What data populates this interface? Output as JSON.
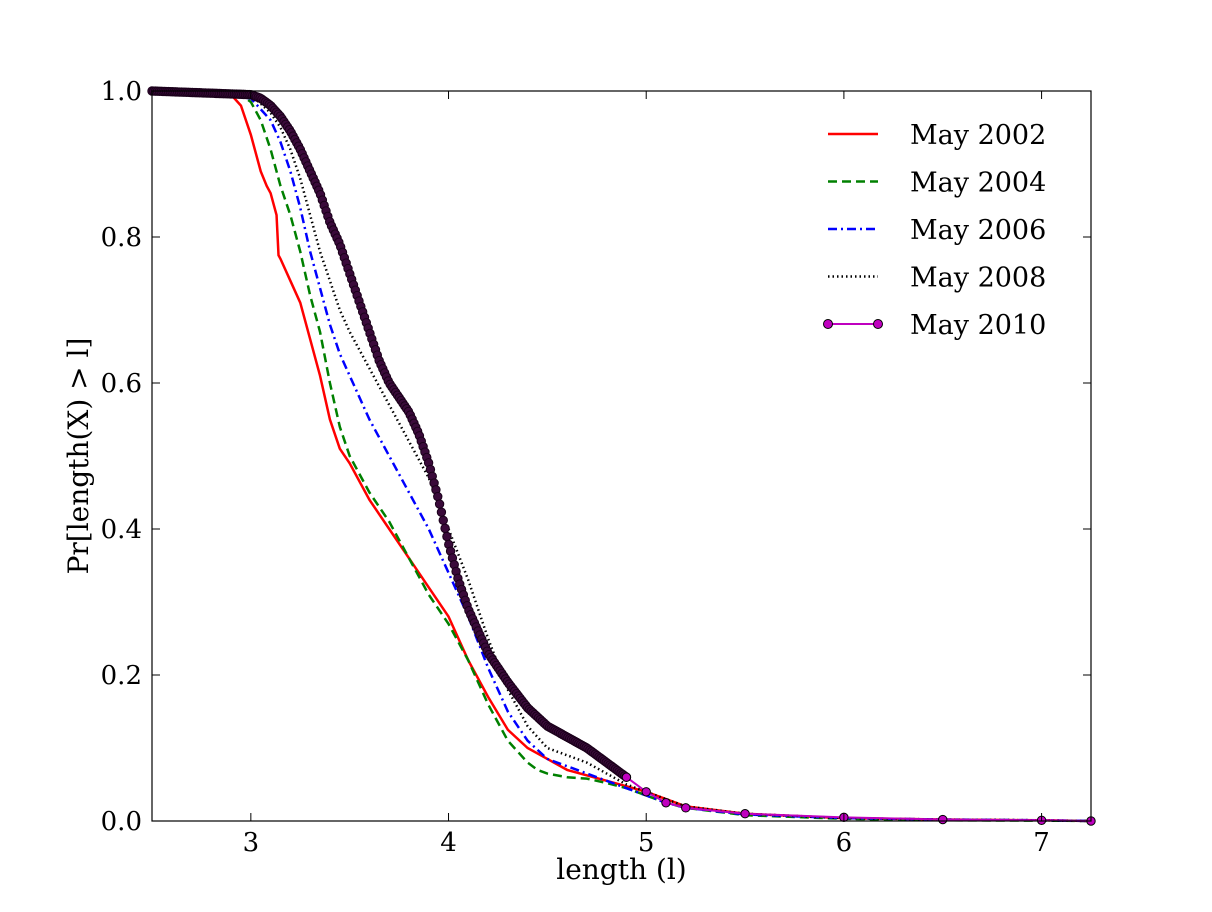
{
  "chart_data": {
    "type": "line",
    "title": "",
    "xlabel": "length (l)",
    "ylabel": "Pr[length(X) > l]",
    "xlim": [
      2.5,
      7.25
    ],
    "ylim": [
      0.0,
      1.0
    ],
    "xticks": [
      3,
      4,
      5,
      6,
      7
    ],
    "xtick_labels": [
      "3",
      "4",
      "5",
      "6",
      "7"
    ],
    "yticks": [
      0.0,
      0.2,
      0.4,
      0.6,
      0.8,
      1.0
    ],
    "ytick_labels": [
      "0.0",
      "0.2",
      "0.4",
      "0.6",
      "0.8",
      "1.0"
    ],
    "grid": false,
    "legend_position": "top-right",
    "series": [
      {
        "name": "May 2002",
        "color": "#ff0000",
        "style": "solid",
        "x": [
          2.5,
          2.9,
          2.95,
          3.0,
          3.02,
          3.05,
          3.08,
          3.1,
          3.13,
          3.14,
          3.15,
          3.2,
          3.25,
          3.3,
          3.35,
          3.4,
          3.45,
          3.5,
          3.6,
          3.7,
          3.8,
          3.9,
          4.0,
          4.1,
          4.2,
          4.3,
          4.4,
          4.5,
          4.6,
          4.8,
          5.0,
          5.1,
          5.2,
          5.5,
          6.0,
          6.5,
          7.0,
          7.25
        ],
        "y": [
          1.0,
          0.995,
          0.98,
          0.94,
          0.92,
          0.89,
          0.87,
          0.86,
          0.83,
          0.775,
          0.77,
          0.74,
          0.71,
          0.66,
          0.61,
          0.55,
          0.51,
          0.49,
          0.44,
          0.4,
          0.36,
          0.32,
          0.28,
          0.22,
          0.17,
          0.125,
          0.1,
          0.085,
          0.07,
          0.055,
          0.04,
          0.03,
          0.02,
          0.01,
          0.004,
          0.002,
          0.001,
          0.0
        ]
      },
      {
        "name": "May 2004",
        "color": "#008000",
        "style": "dashed",
        "x": [
          2.5,
          2.95,
          3.0,
          3.05,
          3.1,
          3.15,
          3.2,
          3.25,
          3.3,
          3.35,
          3.4,
          3.45,
          3.5,
          3.6,
          3.7,
          3.8,
          3.9,
          4.0,
          4.1,
          4.2,
          4.3,
          4.4,
          4.45,
          4.5,
          4.6,
          4.7,
          4.8,
          4.9,
          5.0,
          5.1,
          5.2,
          5.5,
          6.0,
          6.5,
          7.0,
          7.25
        ],
        "y": [
          1.0,
          0.995,
          0.985,
          0.96,
          0.92,
          0.87,
          0.83,
          0.78,
          0.72,
          0.67,
          0.6,
          0.54,
          0.5,
          0.45,
          0.41,
          0.36,
          0.31,
          0.27,
          0.22,
          0.16,
          0.11,
          0.08,
          0.07,
          0.065,
          0.06,
          0.058,
          0.052,
          0.045,
          0.035,
          0.025,
          0.018,
          0.008,
          0.003,
          0.001,
          0.0005,
          0.0
        ]
      },
      {
        "name": "May 2006",
        "color": "#0000ff",
        "style": "dashdot",
        "x": [
          2.5,
          3.0,
          3.05,
          3.1,
          3.15,
          3.2,
          3.25,
          3.3,
          3.35,
          3.4,
          3.45,
          3.5,
          3.6,
          3.7,
          3.8,
          3.9,
          4.0,
          4.1,
          4.2,
          4.3,
          4.4,
          4.5,
          4.6,
          4.7,
          4.8,
          4.9,
          5.0,
          5.1,
          5.2,
          5.5,
          6.0,
          6.5,
          7.0,
          7.25
        ],
        "y": [
          1.0,
          0.99,
          0.975,
          0.96,
          0.93,
          0.89,
          0.84,
          0.78,
          0.73,
          0.68,
          0.64,
          0.61,
          0.55,
          0.5,
          0.45,
          0.4,
          0.34,
          0.28,
          0.21,
          0.15,
          0.11,
          0.085,
          0.075,
          0.065,
          0.055,
          0.045,
          0.035,
          0.025,
          0.018,
          0.009,
          0.004,
          0.002,
          0.001,
          0.0
        ]
      },
      {
        "name": "May 2008",
        "color": "#000000",
        "style": "dotted",
        "x": [
          2.5,
          3.0,
          3.1,
          3.15,
          3.2,
          3.25,
          3.3,
          3.35,
          3.4,
          3.45,
          3.5,
          3.6,
          3.7,
          3.8,
          3.9,
          4.0,
          4.1,
          4.2,
          4.3,
          4.4,
          4.5,
          4.6,
          4.7,
          4.8,
          4.9,
          5.0,
          5.1,
          5.2,
          5.5,
          6.0,
          6.5,
          7.0,
          7.25
        ],
        "y": [
          1.0,
          0.995,
          0.97,
          0.95,
          0.92,
          0.88,
          0.83,
          0.78,
          0.74,
          0.7,
          0.67,
          0.62,
          0.57,
          0.52,
          0.47,
          0.4,
          0.33,
          0.25,
          0.18,
          0.13,
          0.1,
          0.09,
          0.08,
          0.065,
          0.05,
          0.04,
          0.03,
          0.02,
          0.01,
          0.004,
          0.002,
          0.001,
          0.0
        ]
      },
      {
        "name": "May 2010",
        "color": "#bf00bf",
        "style": "solid-marker",
        "x": [
          2.5,
          3.0,
          3.05,
          3.1,
          3.15,
          3.2,
          3.25,
          3.3,
          3.35,
          3.4,
          3.45,
          3.5,
          3.55,
          3.6,
          3.65,
          3.7,
          3.75,
          3.8,
          3.85,
          3.9,
          3.95,
          4.0,
          4.05,
          4.1,
          4.15,
          4.2,
          4.3,
          4.4,
          4.5,
          4.6,
          4.7,
          4.8,
          4.9,
          5.0,
          5.1,
          5.2,
          5.5,
          6.0,
          6.5,
          7.0,
          7.25
        ],
        "y": [
          1.0,
          0.995,
          0.99,
          0.98,
          0.965,
          0.945,
          0.92,
          0.89,
          0.86,
          0.82,
          0.79,
          0.75,
          0.71,
          0.67,
          0.63,
          0.6,
          0.58,
          0.56,
          0.53,
          0.49,
          0.44,
          0.38,
          0.33,
          0.29,
          0.26,
          0.23,
          0.19,
          0.155,
          0.13,
          0.115,
          0.1,
          0.08,
          0.06,
          0.04,
          0.025,
          0.018,
          0.01,
          0.005,
          0.002,
          0.001,
          0.0
        ]
      }
    ]
  }
}
